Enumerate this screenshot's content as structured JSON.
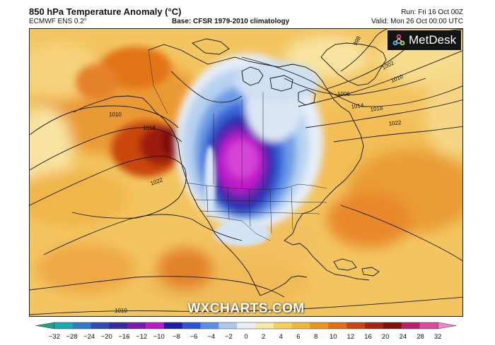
{
  "header": {
    "title": "850 hPa Temperature Anomaly (°C)",
    "model": "ECMWF ENS 0.2°",
    "base": "Base: CFSR 1979-2010 climatology",
    "run": "Run: Fri 16 Oct 00Z",
    "valid": "Valid: Mon 26 Oct 00:00 UTC"
  },
  "branding": {
    "logo_text": "MetDesk",
    "watermark": "WXCHARTS.COM"
  },
  "isobars": {
    "labels": [
      "998",
      "1002",
      "1010",
      "1006",
      "1014",
      "1018",
      "1022",
      "1010",
      "1018",
      "1022",
      "1010"
    ]
  },
  "colorbar": {
    "ticks": [
      "−32",
      "−28",
      "−24",
      "−20",
      "−16",
      "−12",
      "−10",
      "−8",
      "−6",
      "−4",
      "−2",
      "0",
      "2",
      "4",
      "6",
      "8",
      "10",
      "12",
      "16",
      "20",
      "24",
      "28",
      "32"
    ],
    "colors": [
      "#1fa08a",
      "#19a9b4",
      "#2b7fc9",
      "#304ab8",
      "#3a2aa0",
      "#7a1ab2",
      "#b81ec8",
      "#1d1ea8",
      "#2c55d4",
      "#5a8fe6",
      "#a9c9f0",
      "#e8eef6",
      "#fbe9a8",
      "#f6cf5c",
      "#f2b73a",
      "#ea9323",
      "#df6f16",
      "#c9470f",
      "#a5260c",
      "#7f1309",
      "#b6206e",
      "#d64aa2",
      "#ef86c8"
    ]
  }
}
